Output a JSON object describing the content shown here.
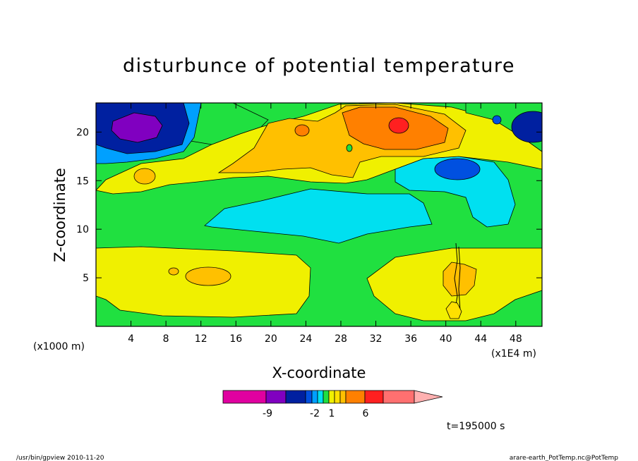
{
  "chart_data": {
    "type": "heatmap",
    "title": "disturbunce of potential temperature",
    "xlabel": "X-coordinate",
    "ylabel": "Z-coordinate",
    "x_scale_note_left": "(x1000 m)",
    "x_scale_note_right": "(x1E4 m)",
    "xlim": [
      0,
      51
    ],
    "ylim": [
      0,
      23
    ],
    "x_ticks": [
      4,
      8,
      12,
      16,
      20,
      24,
      28,
      32,
      36,
      40,
      44,
      48
    ],
    "y_ticks": [
      5,
      10,
      15,
      20
    ],
    "time_label": "t=195000 s",
    "colorbar": {
      "labels": [
        {
          "text": "-9",
          "value": -9
        },
        {
          "text": "-2",
          "value": -2
        },
        {
          "text": "1",
          "value": 1
        },
        {
          "text": "6",
          "value": 6
        }
      ],
      "colors": [
        "#e000a0",
        "#8000c0",
        "#0020a0",
        "#0050e0",
        "#00a0ff",
        "#00e0f0",
        "#20e040",
        "#f0f000",
        "#ffe000",
        "#ffc000",
        "#ff8000",
        "#ff2020",
        "#ff7070",
        "#ffb0b0"
      ]
    },
    "regions": [
      {
        "level": "-9",
        "color": "#8000c0",
        "description": "upper-left core",
        "x": [
          2,
          7.5
        ],
        "y": [
          18.5,
          21.5
        ]
      },
      {
        "level": "-6",
        "color": "#0020a0",
        "description": "upper-left",
        "x": [
          0,
          9.5
        ],
        "y": [
          17.5,
          23
        ]
      },
      {
        "level": "-3",
        "color": "#0050e0",
        "description": "mid-right",
        "x": [
          39,
          44
        ],
        "y": [
          15,
          17.5
        ]
      },
      {
        "level": "-2",
        "color": "#00e0f0",
        "description": "mid band",
        "x": [
          12.5,
          38
        ],
        "y": [
          8.5,
          12.5
        ]
      },
      {
        "level": "2",
        "color": "#ffc000",
        "description": "upper",
        "x": [
          14,
          31
        ],
        "y": [
          15.5,
          21
        ]
      },
      {
        "level": "5",
        "color": "#ff8000",
        "description": "upper-right warm",
        "x": [
          28,
          40
        ],
        "y": [
          17.5,
          22.5
        ]
      },
      {
        "level": "6",
        "color": "#ff2020",
        "description": "warm core",
        "x": [
          33.5,
          35.5
        ],
        "y": [
          19.5,
          21
        ]
      }
    ]
  },
  "footer": {
    "left": "/usr/bin/gpview  2010-11-20",
    "right": "arare-earth_PotTemp.nc@PotTemp"
  }
}
